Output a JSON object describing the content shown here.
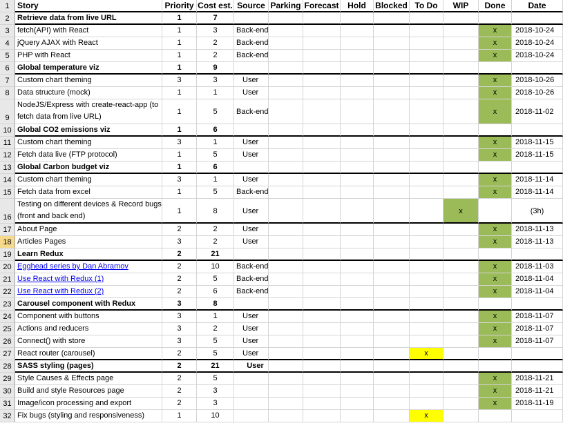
{
  "headers": [
    "Story",
    "Priority",
    "Cost est.",
    "Source",
    "Parking",
    "Forecast",
    "Hold",
    "Blocked",
    "To Do",
    "WIP",
    "Done",
    "Date"
  ],
  "selected_row": 18,
  "colors": {
    "done_fill": "#9bbb59",
    "todo_fill": "#ffff00",
    "link": "#0000ee"
  },
  "rows": [
    {
      "n": 2,
      "story": "Retrieve data from live URL",
      "pr": "1",
      "cost": "7",
      "src": "",
      "group": true,
      "todo": "",
      "wip": "",
      "done": "",
      "date": ""
    },
    {
      "n": 3,
      "story": "fetch(API) with React",
      "pr": "1",
      "cost": "3",
      "src": "Back-end",
      "todo": "",
      "wip": "",
      "done": "x",
      "date": "2018-10-24"
    },
    {
      "n": 4,
      "story": "jQuery AJAX with React",
      "pr": "1",
      "cost": "2",
      "src": "Back-end",
      "todo": "",
      "wip": "",
      "done": "x",
      "date": "2018-10-24"
    },
    {
      "n": 5,
      "story": "PHP with React",
      "pr": "1",
      "cost": "2",
      "src": "Back-end",
      "todo": "",
      "wip": "",
      "done": "x",
      "date": "2018-10-24"
    },
    {
      "n": 6,
      "story": "Global temperature viz",
      "pr": "1",
      "cost": "9",
      "src": "",
      "group": true,
      "todo": "",
      "wip": "",
      "done": "",
      "date": ""
    },
    {
      "n": 7,
      "story": "Custom chart theming",
      "pr": "3",
      "cost": "3",
      "src": "User",
      "todo": "",
      "wip": "",
      "done": "x",
      "date": "2018-10-26"
    },
    {
      "n": 8,
      "story": "Data structure (mock)",
      "pr": "1",
      "cost": "1",
      "src": "User",
      "todo": "",
      "wip": "",
      "done": "x",
      "date": "2018-10-26"
    },
    {
      "n": 9,
      "story": "NodeJS/Express with create-react-app (to fetch data from live URL)",
      "pr": "1",
      "cost": "5",
      "src": "Back-end",
      "todo": "",
      "wip": "",
      "done": "x",
      "date": "2018-11-02",
      "tall": true
    },
    {
      "n": 10,
      "story": "Global CO2 emissions viz",
      "pr": "1",
      "cost": "6",
      "src": "",
      "group": true,
      "todo": "",
      "wip": "",
      "done": "",
      "date": ""
    },
    {
      "n": 11,
      "story": "Custom chart theming",
      "pr": "3",
      "cost": "1",
      "src": "User",
      "todo": "",
      "wip": "",
      "done": "x",
      "date": "2018-11-15"
    },
    {
      "n": 12,
      "story": "Fetch data live (FTP protocol)",
      "pr": "1",
      "cost": "5",
      "src": "User",
      "todo": "",
      "wip": "",
      "done": "x",
      "date": "2018-11-15"
    },
    {
      "n": 13,
      "story": "Global Carbon budget viz",
      "pr": "1",
      "cost": "6",
      "src": "",
      "group": true,
      "todo": "",
      "wip": "",
      "done": "",
      "date": ""
    },
    {
      "n": 14,
      "story": "Custom chart theming",
      "pr": "3",
      "cost": "1",
      "src": "User",
      "todo": "",
      "wip": "",
      "done": "x",
      "date": "2018-11-14"
    },
    {
      "n": 15,
      "story": "Fetch data from excel",
      "pr": "1",
      "cost": "5",
      "src": "Back-end",
      "todo": "",
      "wip": "",
      "done": "x",
      "date": "2018-11-14"
    },
    {
      "n": 16,
      "story": "Testing on different devices & Record bugs (front and back end)",
      "pr": "1",
      "cost": "8",
      "src": "User",
      "todo": "",
      "wip": "x",
      "done": "",
      "date": "(3h)",
      "tall": true,
      "thick": true
    },
    {
      "n": 17,
      "story": "About Page",
      "pr": "2",
      "cost": "2",
      "src": "User",
      "todo": "",
      "wip": "",
      "done": "x",
      "date": "2018-11-13"
    },
    {
      "n": 18,
      "story": "Articles Pages",
      "pr": "3",
      "cost": "2",
      "src": "User",
      "todo": "",
      "wip": "",
      "done": "x",
      "date": "2018-11-13"
    },
    {
      "n": 19,
      "story": "Learn Redux",
      "pr": "2",
      "cost": "21",
      "src": "",
      "group": true,
      "todo": "",
      "wip": "",
      "done": "",
      "date": ""
    },
    {
      "n": 20,
      "story": "Egghead series by Dan Abramov",
      "pr": "2",
      "cost": "10",
      "src": "Back-end",
      "link": true,
      "todo": "",
      "wip": "",
      "done": "x",
      "date": "2018-11-03"
    },
    {
      "n": 21,
      "story": "Use React with Redux (1)",
      "pr": "2",
      "cost": "5",
      "src": "Back-end",
      "link": true,
      "todo": "",
      "wip": "",
      "done": "x",
      "date": "2018-11-04"
    },
    {
      "n": 22,
      "story": "Use React with Redux (2)",
      "pr": "2",
      "cost": "6",
      "src": "Back-end",
      "link": true,
      "todo": "",
      "wip": "",
      "done": "x",
      "date": "2018-11-04"
    },
    {
      "n": 23,
      "story": "Carousel component with Redux",
      "pr": "3",
      "cost": "8",
      "src": "",
      "group": true,
      "todo": "",
      "wip": "",
      "done": "",
      "date": ""
    },
    {
      "n": 24,
      "story": "Component with buttons",
      "pr": "3",
      "cost": "1",
      "src": "User",
      "todo": "",
      "wip": "",
      "done": "x",
      "date": "2018-11-07"
    },
    {
      "n": 25,
      "story": "Actions and reducers",
      "pr": "3",
      "cost": "2",
      "src": "User",
      "todo": "",
      "wip": "",
      "done": "x",
      "date": "2018-11-07"
    },
    {
      "n": 26,
      "story": "Connect() with store",
      "pr": "3",
      "cost": "5",
      "src": "User",
      "todo": "",
      "wip": "",
      "done": "x",
      "date": "2018-11-07"
    },
    {
      "n": 27,
      "story": "React router (carousel)",
      "pr": "2",
      "cost": "5",
      "src": "User",
      "todo": "x",
      "wip": "",
      "done": "",
      "date": "",
      "thick": true
    },
    {
      "n": 28,
      "story": "SASS styling (pages)",
      "pr": "2",
      "cost": "21",
      "src": "User",
      "group": true,
      "boldsrc": true,
      "todo": "",
      "wip": "",
      "done": "",
      "date": ""
    },
    {
      "n": 29,
      "story": "Style Causes & Effects page",
      "pr": "2",
      "cost": "5",
      "src": "",
      "todo": "",
      "wip": "",
      "done": "x",
      "date": "2018-11-21"
    },
    {
      "n": 30,
      "story": "Build and style Resources page",
      "pr": "2",
      "cost": "3",
      "src": "",
      "todo": "",
      "wip": "",
      "done": "x",
      "date": "2018-11-21"
    },
    {
      "n": 31,
      "story": "Image/icon processing and export",
      "pr": "2",
      "cost": "3",
      "src": "",
      "todo": "",
      "wip": "",
      "done": "x",
      "date": "2018-11-19"
    },
    {
      "n": 32,
      "story": "Fix bugs (styling and responsiveness)",
      "pr": "1",
      "cost": "10",
      "src": "",
      "todo": "x",
      "wip": "",
      "done": "",
      "date": ""
    }
  ]
}
